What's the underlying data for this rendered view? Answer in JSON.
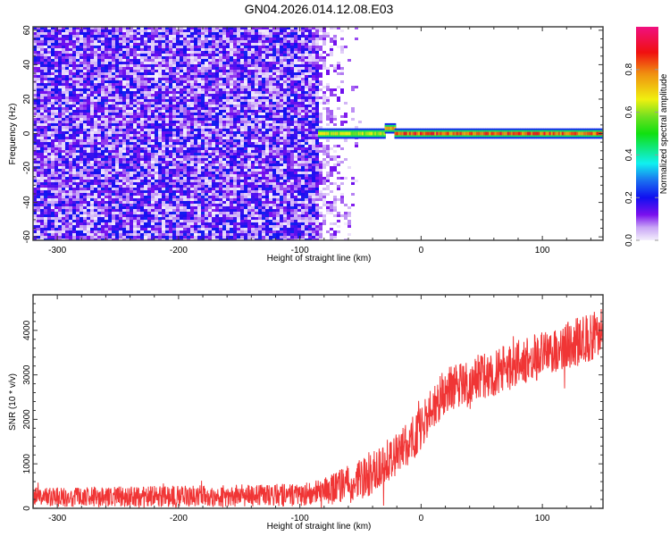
{
  "title": "GN04.2026.014.12.08.E03",
  "chart_data": [
    {
      "type": "heatmap",
      "xlabel": "Height of straight line (km)",
      "ylabel": "Frequency (Hz)",
      "xlim": [
        -320,
        150
      ],
      "ylim": [
        -62,
        62
      ],
      "xticks": [
        -300,
        -200,
        -100,
        0,
        100
      ],
      "yticks": [
        -60,
        -40,
        -20,
        0,
        20,
        40,
        60
      ],
      "colorbar": {
        "label": "Normalized spectral amplitude",
        "range": [
          0,
          1
        ],
        "ticks": [
          0.0,
          0.2,
          0.4,
          0.6,
          0.8
        ],
        "tick_labels": [
          "0.0",
          "0.2",
          "0.4",
          "0.6",
          "0.8"
        ]
      },
      "noise_region_km": [
        -320,
        -50
      ],
      "noise_amplitude_max": 0.22,
      "band": {
        "frequency_hz": 0,
        "start_km": -85,
        "end_km": 150,
        "segments": [
          {
            "from": -85,
            "to": -30,
            "peak": 0.7
          },
          {
            "from": -30,
            "to": -22,
            "peak": 0.85,
            "frequency_offset_hz": 3
          },
          {
            "from": -22,
            "to": 150,
            "peak": 0.92
          }
        ]
      }
    },
    {
      "type": "line",
      "xlabel": "Height of straight line (km)",
      "ylabel": "SNR (10 * v/v)",
      "xlim": [
        -320,
        150
      ],
      "ylim": [
        0,
        4800
      ],
      "xticks": [
        -300,
        -200,
        -100,
        0,
        100
      ],
      "yticks": [
        0,
        1000,
        2000,
        3000,
        4000
      ],
      "color": "#f03535",
      "trend": {
        "x": [
          -320,
          -200,
          -100,
          -80,
          -70,
          -50,
          -30,
          -10,
          0,
          10,
          20,
          40,
          60,
          80,
          100,
          120,
          150
        ],
        "y": [
          250,
          270,
          300,
          380,
          450,
          650,
          1000,
          1450,
          1800,
          2300,
          2650,
          2900,
          3050,
          3250,
          3450,
          3650,
          3950
        ]
      },
      "noise_spread": {
        "x": [
          -320,
          -90,
          -50,
          150
        ],
        "y": [
          220,
          260,
          500,
          550
        ]
      }
    }
  ]
}
